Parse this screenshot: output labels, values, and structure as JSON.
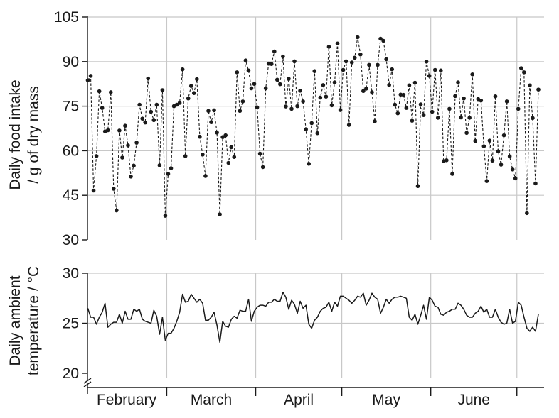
{
  "figure": {
    "colors": {
      "ink": "#1a1a1a",
      "grid": "#c8c8c8",
      "background": "#ffffff"
    },
    "months": [
      "February",
      "March",
      "April",
      "May",
      "June"
    ],
    "month_days": [
      28,
      31,
      30,
      31,
      30,
      8
    ]
  },
  "chart_data": [
    {
      "type": "line",
      "style": "dashed line with circular markers",
      "title": "",
      "xlabel": "",
      "ylabel": "Daily food intake / g of dry mass",
      "ylabel_lines": [
        "Daily food intake",
        "/ g of dry mass"
      ],
      "ylim": [
        30,
        105
      ],
      "yticks": [
        30,
        45,
        60,
        75,
        90,
        105
      ],
      "grid": true,
      "x_unit": "day index from 1 February",
      "series": [
        {
          "values": [
            83.7,
            85.2,
            46.6,
            58.2,
            80.0,
            74.4,
            66.5,
            66.9,
            79.7,
            47.2,
            39.9,
            66.8,
            57.7,
            68.4,
            61.8,
            51.3,
            55.0,
            62.7,
            75.5,
            70.8,
            69.5,
            84.3,
            73.1,
            70.3,
            75.5,
            55.1,
            80.4,
            38.1,
            52.2,
            54.1,
            75.0,
            75.5,
            76.1,
            87.4,
            58.2,
            77.6,
            81.8,
            79.4,
            84.1,
            64.7,
            58.7,
            51.5,
            73.4,
            69.6,
            73.6,
            66.1,
            38.6,
            64.6,
            65.2,
            55.9,
            61.2,
            57.9,
            86.4,
            73.4,
            76.6,
            90.4,
            87.0,
            81.0,
            82.5,
            74.6,
            59.0,
            54.5,
            81.0,
            89.3,
            89.2,
            93.4,
            83.9,
            82.4,
            91.7,
            74.9,
            84.2,
            74.1,
            90.1,
            75.0,
            80.2,
            76.6,
            67.2,
            55.6,
            69.3,
            86.8,
            65.9,
            77.9,
            82.1,
            78.2,
            95.0,
            75.3,
            83.0,
            96.1,
            73.7,
            87.2,
            90.1,
            68.7,
            89.7,
            91.3,
            98.2,
            92.4,
            80.1,
            80.9,
            88.9,
            79.7,
            69.9,
            88.9,
            97.7,
            97.0,
            90.8,
            82.1,
            87.4,
            75.5,
            72.6,
            78.9,
            78.8,
            74.4,
            82.0,
            70.1,
            82.9,
            48.1,
            75.6,
            72.0,
            90.0,
            85.2,
            73.1,
            87.2,
            71.1,
            87.0,
            56.5,
            56.8,
            74.1,
            52.2,
            78.4,
            83.0,
            71.2,
            77.6,
            66.0,
            71.1,
            85.7,
            63.3,
            77.4,
            76.9,
            61.5,
            49.8,
            63.4,
            56.7,
            78.3,
            59.8,
            55.3,
            65.2,
            76.6,
            58.1,
            53.7,
            50.7,
            74.1,
            87.8,
            86.4,
            39.0,
            82.0,
            71.0,
            49.0,
            80.6
          ]
        }
      ]
    },
    {
      "type": "line",
      "style": "solid line",
      "title": "",
      "xlabel": "",
      "ylabel": "Daily ambient temperature / °C",
      "ylabel_lines": [
        "Daily ambient",
        "temperature / °C"
      ],
      "ylim": [
        20,
        30
      ],
      "yticks": [
        20,
        25,
        30
      ],
      "axis_break": true,
      "grid": true,
      "x_unit": "day index from 1 February",
      "series": [
        {
          "values": [
            26.5,
            25.6,
            25.6,
            24.9,
            25.6,
            26.1,
            27.0,
            24.6,
            24.9,
            25.1,
            25.1,
            25.9,
            25.0,
            26.2,
            25.4,
            25.4,
            26.4,
            26.2,
            26.4,
            25.4,
            25.2,
            25.1,
            25.0,
            26.3,
            25.7,
            23.9,
            25.6,
            23.3,
            24.0,
            24.0,
            24.5,
            25.2,
            26.1,
            27.9,
            27.1,
            27.2,
            27.9,
            27.5,
            27.1,
            27.4,
            27.0,
            25.3,
            25.3,
            25.6,
            26.1,
            24.8,
            23.1,
            25.2,
            24.7,
            24.6,
            25.4,
            25.7,
            25.5,
            26.3,
            26.2,
            26.2,
            27.4,
            25.2,
            26.2,
            26.6,
            26.8,
            26.8,
            26.7,
            27.1,
            27.1,
            27.4,
            27.2,
            27.2,
            28.1,
            27.6,
            26.4,
            27.3,
            26.9,
            26.0,
            27.2,
            26.5,
            26.8,
            24.9,
            24.5,
            25.3,
            25.6,
            26.2,
            26.5,
            26.6,
            27.1,
            26.2,
            27.1,
            26.7,
            27.7,
            27.7,
            27.5,
            27.3,
            27.0,
            27.3,
            27.7,
            27.6,
            28.0,
            26.8,
            27.3,
            28.0,
            27.6,
            27.4,
            26.0,
            26.6,
            27.4,
            27.0,
            27.4,
            27.6,
            27.6,
            27.7,
            27.6,
            27.5,
            25.6,
            25.3,
            25.9,
            24.9,
            25.8,
            26.8,
            25.4,
            27.6,
            27.3,
            26.7,
            26.6,
            25.9,
            25.8,
            26.1,
            26.2,
            26.4,
            26.4,
            27.0,
            26.8,
            26.4,
            25.8,
            25.6,
            25.6,
            26.0,
            26.2,
            26.7,
            26.1,
            26.4,
            25.6,
            25.6,
            26.4,
            25.6,
            25.1,
            24.9,
            25.0,
            26.4,
            25.0,
            25.2,
            27.1,
            26.8,
            25.6,
            24.5,
            24.2,
            24.6,
            24.2,
            25.9
          ]
        }
      ]
    }
  ]
}
